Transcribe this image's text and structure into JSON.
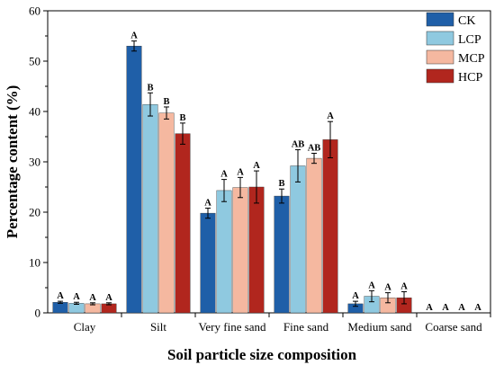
{
  "chart_data": {
    "type": "bar",
    "xlabel": "Soil particle size composition",
    "ylabel": "Percentage content (%)",
    "ylim": [
      0,
      60
    ],
    "yticks": [
      0,
      10,
      20,
      30,
      40,
      50,
      60
    ],
    "grid": false,
    "legend_position": "top-right",
    "categories": [
      "Clay",
      "Silt",
      "Very fine sand",
      "Fine sand",
      "Medium sand",
      "Coarse sand"
    ],
    "series": [
      {
        "name": "CK",
        "color": "#1f5fa8",
        "values": [
          2.1,
          53.0,
          19.8,
          23.2,
          1.8,
          0
        ],
        "errors": [
          0.2,
          1.0,
          1.0,
          1.4,
          0.5,
          0
        ],
        "labels": [
          "A",
          "A",
          "A",
          "B",
          "A",
          "A"
        ]
      },
      {
        "name": "LCP",
        "color": "#8fc9e0",
        "values": [
          1.9,
          41.4,
          24.3,
          29.2,
          3.3,
          0
        ],
        "errors": [
          0.2,
          2.3,
          2.2,
          3.2,
          1.1,
          0
        ],
        "labels": [
          "A",
          "B",
          "A",
          "AB",
          "A",
          "A"
        ]
      },
      {
        "name": "MCP",
        "color": "#f5b8a0",
        "values": [
          1.8,
          39.7,
          24.9,
          30.7,
          3.0,
          0
        ],
        "errors": [
          0.2,
          1.2,
          2.0,
          1.0,
          1.0,
          0
        ],
        "labels": [
          "A",
          "B",
          "A",
          "AB",
          "A",
          "A"
        ]
      },
      {
        "name": "HCP",
        "color": "#b1261e",
        "values": [
          1.8,
          35.6,
          25.0,
          34.4,
          3.0,
          0
        ],
        "errors": [
          0.2,
          2.1,
          3.2,
          3.6,
          1.2,
          0
        ],
        "labels": [
          "A",
          "B",
          "A",
          "A",
          "A",
          "A"
        ]
      }
    ]
  }
}
